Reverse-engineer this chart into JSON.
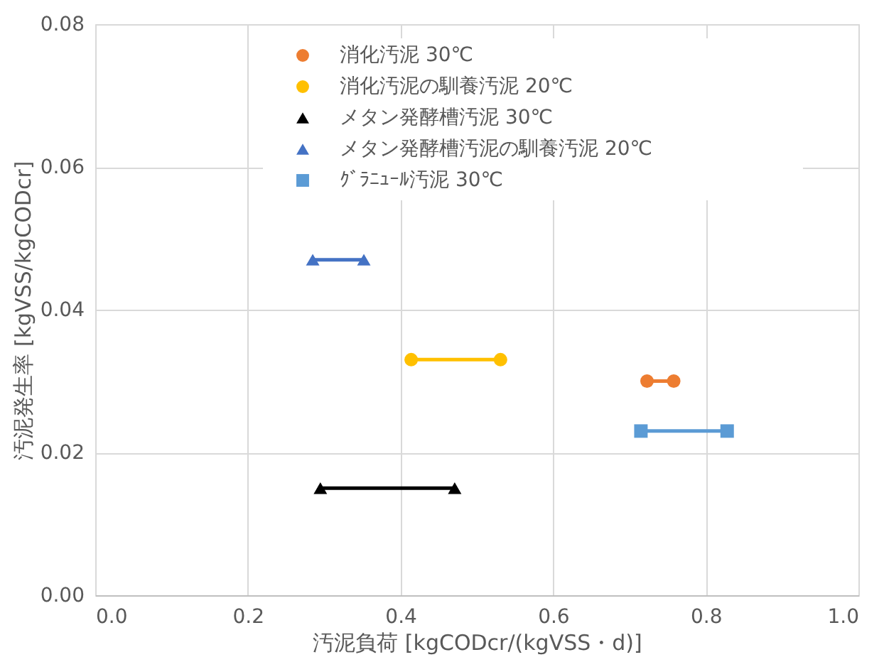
{
  "chart_data": {
    "type": "line",
    "xlabel": "汚泥負荷 [kgCODcr/(kgVSS・d)]",
    "ylabel": "汚泥発生率 [kgVSS/kgCODcr]",
    "xlim": [
      0,
      1.0
    ],
    "xticks": [
      {
        "value": 0,
        "label": "0.0"
      },
      {
        "value": 0.2,
        "label": "0.2"
      },
      {
        "value": 0.4,
        "label": "0.4"
      },
      {
        "value": 0.6,
        "label": "0.6"
      },
      {
        "value": 0.8,
        "label": "0.8"
      },
      {
        "value": 1.0,
        "label": "1.0"
      }
    ],
    "ylim": [
      0,
      0.08
    ],
    "yticks": [
      {
        "value": 0,
        "label": "0.00"
      },
      {
        "value": 0.02,
        "label": "0.02"
      },
      {
        "value": 0.04,
        "label": "0.04"
      },
      {
        "value": 0.06,
        "label": "0.06"
      },
      {
        "value": 0.08,
        "label": "0.08"
      }
    ],
    "grid": true,
    "legend": "top right",
    "series": [
      {
        "name": "消化汚泥 30℃",
        "color": "#ed7d31",
        "marker": "circle",
        "x": [
          0.723,
          0.758
        ],
        "values": [
          0.03,
          0.03
        ]
      },
      {
        "name": "消化汚泥の馴養汚泥 20℃",
        "color": "#ffc000",
        "marker": "circle",
        "x": [
          0.414,
          0.531
        ],
        "values": [
          0.033,
          0.033
        ]
      },
      {
        "name": "メタン発酵槽汚泥 30℃",
        "color": "#000000",
        "marker": "triangle",
        "x": [
          0.295,
          0.471
        ],
        "values": [
          0.015,
          0.015
        ]
      },
      {
        "name": "メタン発酵槽汚泥の馴養汚泥 20℃",
        "color": "#4472c4",
        "marker": "triangle",
        "x": [
          0.285,
          0.352
        ],
        "values": [
          0.047,
          0.047
        ]
      },
      {
        "name": "ｸﾞﾗﾆｭｰﾙ汚泥 30℃",
        "color": "#5b9bd5",
        "marker": "square",
        "x": [
          0.715,
          0.828
        ],
        "values": [
          0.023,
          0.023
        ]
      }
    ]
  }
}
